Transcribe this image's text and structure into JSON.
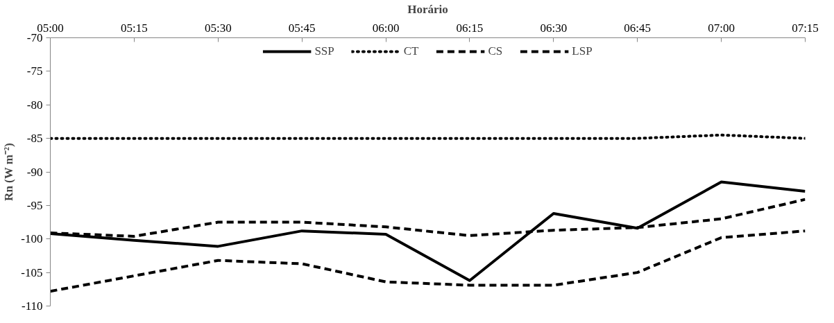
{
  "chart_data": {
    "type": "line",
    "xlabel": "Horário",
    "ylabel": "Rn (W m⁻²)",
    "categories": [
      "05:00",
      "05:15",
      "05:30",
      "05:45",
      "06:00",
      "06:15",
      "06:30",
      "06:45",
      "07:00",
      "07:15"
    ],
    "ylim": [
      -110,
      -70
    ],
    "yticks": [
      -110,
      -105,
      -100,
      -95,
      -90,
      -85,
      -80,
      -75,
      -70
    ],
    "grid": false,
    "legend": "top",
    "marker": "none",
    "series": [
      {
        "name": "SSP",
        "color": "#000000",
        "line_style": "solid",
        "values": [
          -99.2,
          -100.2,
          -101.1,
          -98.8,
          -99.3,
          -106.2,
          -96.2,
          -98.4,
          -91.5,
          -92.9
        ]
      },
      {
        "name": "CT",
        "color": "#000000",
        "line_style": "dotted",
        "values": [
          -85,
          -85,
          -85,
          -85,
          -85,
          -85,
          -85,
          -85,
          -84.5,
          -85
        ]
      },
      {
        "name": "CS",
        "color": "#000000",
        "line_style": "dashed",
        "values": [
          -99.1,
          -99.6,
          -97.5,
          -97.5,
          -98.2,
          -99.5,
          -98.7,
          -98.3,
          -97.0,
          -94.1
        ]
      },
      {
        "name": "LSP",
        "color": "#000000",
        "line_style": "dashed",
        "values": [
          -107.8,
          -105.5,
          -103.2,
          -103.7,
          -106.4,
          -106.9,
          -106.9,
          -105.0,
          -99.8,
          -98.8
        ]
      }
    ]
  }
}
